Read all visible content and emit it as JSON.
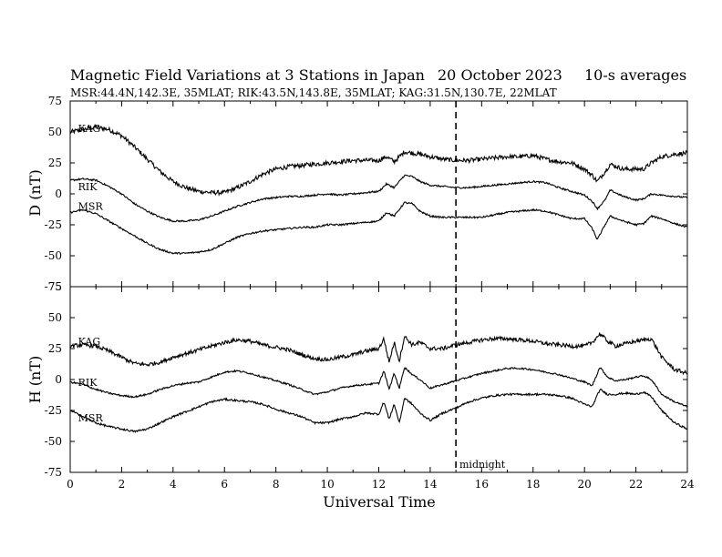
{
  "figure": {
    "title": "Magnetic Field Variations at 3 Stations in Japan",
    "date": "20 October 2023",
    "averaging": "10-s averages",
    "subtitle": "MSR:44.4N,142.3E, 35MLAT;  RIK:43.5N,143.8E, 35MLAT;  KAG:31.5N,130.7E, 22MLAT",
    "xlabel": "Universal Time",
    "midnight_label": "midnight"
  },
  "chart_data": [
    {
      "type": "line",
      "panel": "D",
      "ylabel": "D (nT)",
      "xlim": [
        0,
        24
      ],
      "ylim": [
        -75,
        75
      ],
      "yticks": [
        75,
        50,
        25,
        0,
        -25,
        -50,
        -75
      ],
      "xticks": [
        0,
        2,
        4,
        6,
        8,
        10,
        12,
        14,
        16,
        18,
        20,
        22,
        24
      ],
      "vline": 15,
      "noise_color": "#000000",
      "series": [
        {
          "name": "KAG",
          "label_at": [
            0.2,
            50
          ],
          "noise": 1.8,
          "x": [
            0,
            0.5,
            1,
            1.5,
            2,
            2.5,
            3,
            3.5,
            4,
            4.5,
            5,
            5.5,
            6,
            6.5,
            7,
            7.5,
            8,
            8.5,
            9,
            9.5,
            10,
            10.5,
            11,
            11.5,
            12,
            12.3,
            12.6,
            13,
            13.3,
            13.6,
            14,
            14.5,
            15,
            15.5,
            16,
            16.5,
            17,
            17.5,
            18,
            18.5,
            19,
            19.5,
            20,
            20.3,
            20.5,
            20.8,
            21,
            21.5,
            22,
            22.3,
            22.6,
            23,
            23.5,
            24
          ],
          "y": [
            50,
            52,
            54,
            52,
            47,
            38,
            28,
            18,
            10,
            5,
            2,
            1,
            1,
            5,
            10,
            16,
            20,
            22,
            23,
            24,
            25,
            26,
            27,
            27,
            27,
            30,
            26,
            34,
            33,
            32,
            30,
            28,
            27,
            27,
            28,
            29,
            30,
            30,
            31,
            28,
            26,
            25,
            20,
            15,
            10,
            18,
            24,
            20,
            20,
            20,
            25,
            30,
            32,
            33
          ]
        },
        {
          "name": "RIK",
          "label_at": [
            0.2,
            3
          ],
          "noise": 0.7,
          "x": [
            0,
            0.5,
            1,
            1.5,
            2,
            2.5,
            3,
            3.5,
            4,
            4.5,
            5,
            5.5,
            6,
            6.5,
            7,
            7.5,
            8,
            8.5,
            9,
            9.5,
            10,
            10.5,
            11,
            11.5,
            12,
            12.3,
            12.6,
            13,
            13.3,
            13.6,
            14,
            14.5,
            15,
            15.5,
            16,
            16.5,
            17,
            17.5,
            18,
            18.5,
            19,
            19.5,
            20,
            20.3,
            20.5,
            20.8,
            21,
            21.5,
            22,
            22.3,
            22.6,
            23,
            23.5,
            24
          ],
          "y": [
            11,
            12,
            11,
            6,
            0,
            -8,
            -14,
            -19,
            -22,
            -22,
            -21,
            -18,
            -14,
            -10,
            -7,
            -4,
            -3,
            -2,
            -2,
            -1,
            0,
            -1,
            0,
            1,
            2,
            8,
            5,
            15,
            14,
            10,
            7,
            6,
            5,
            5,
            6,
            7,
            8,
            9,
            10,
            9,
            5,
            2,
            -1,
            -6,
            -12,
            -5,
            3,
            -2,
            -5,
            -4,
            0,
            -1,
            -2,
            -3
          ]
        },
        {
          "name": "MSR",
          "label_at": [
            0.2,
            -13
          ],
          "noise": 0.7,
          "x": [
            0,
            0.5,
            1,
            1.5,
            2,
            2.5,
            3,
            3.5,
            4,
            4.5,
            5,
            5.5,
            6,
            6.5,
            7,
            7.5,
            8,
            8.5,
            9,
            9.5,
            10,
            10.5,
            11,
            11.5,
            12,
            12.3,
            12.6,
            13,
            13.3,
            13.6,
            14,
            14.5,
            15,
            15.5,
            16,
            16.5,
            17,
            17.5,
            18,
            18.5,
            19,
            19.5,
            20,
            20.3,
            20.5,
            20.8,
            21,
            21.5,
            22,
            22.3,
            22.6,
            23,
            23.5,
            24
          ],
          "y": [
            -15,
            -13,
            -16,
            -22,
            -28,
            -34,
            -40,
            -45,
            -48,
            -48,
            -47,
            -45,
            -40,
            -35,
            -32,
            -30,
            -29,
            -28,
            -27,
            -27,
            -25,
            -25,
            -24,
            -23,
            -22,
            -15,
            -18,
            -7,
            -8,
            -14,
            -18,
            -19,
            -19,
            -19,
            -19,
            -17,
            -15,
            -14,
            -13,
            -14,
            -17,
            -20,
            -20,
            -28,
            -37,
            -25,
            -18,
            -22,
            -25,
            -24,
            -18,
            -20,
            -24,
            -27
          ]
        }
      ]
    },
    {
      "type": "line",
      "panel": "H",
      "ylabel": "H (nT)",
      "xlim": [
        0,
        24
      ],
      "ylim": [
        -75,
        75
      ],
      "yticks": [
        75,
        50,
        25,
        0,
        -25,
        -50,
        -75
      ],
      "xticks": [
        0,
        2,
        4,
        6,
        8,
        10,
        12,
        14,
        16,
        18,
        20,
        22,
        24
      ],
      "vline": 15,
      "series": [
        {
          "name": "KAG",
          "label_at": [
            0.2,
            28
          ],
          "noise": 1.6,
          "x": [
            0,
            0.5,
            1,
            1.5,
            2,
            2.5,
            3,
            3.5,
            4,
            4.5,
            5,
            5.5,
            6,
            6.5,
            7,
            7.5,
            8,
            8.5,
            9,
            9.5,
            10,
            10.5,
            11,
            11.5,
            12,
            12.2,
            12.4,
            12.6,
            12.8,
            13,
            13.3,
            13.6,
            14,
            14.5,
            15,
            15.5,
            16,
            16.5,
            17,
            17.5,
            18,
            18.5,
            19,
            19.5,
            20,
            20.3,
            20.6,
            20.9,
            21.2,
            21.6,
            22,
            22.3,
            22.6,
            23,
            23.5,
            24
          ],
          "y": [
            27,
            28,
            27,
            23,
            18,
            13,
            12,
            14,
            18,
            21,
            24,
            27,
            30,
            32,
            31,
            28,
            26,
            24,
            20,
            17,
            16,
            18,
            20,
            23,
            25,
            33,
            14,
            30,
            15,
            35,
            28,
            30,
            25,
            25,
            28,
            30,
            32,
            33,
            33,
            32,
            31,
            29,
            28,
            27,
            27,
            30,
            37,
            31,
            27,
            29,
            31,
            32,
            33,
            18,
            8,
            5
          ]
        },
        {
          "name": "RIK",
          "label_at": [
            0.2,
            -5
          ],
          "noise": 0.7,
          "x": [
            0,
            0.5,
            1,
            1.5,
            2,
            2.5,
            3,
            3.5,
            4,
            4.5,
            5,
            5.5,
            6,
            6.5,
            7,
            7.5,
            8,
            8.5,
            9,
            9.5,
            10,
            10.5,
            11,
            11.5,
            12,
            12.2,
            12.4,
            12.6,
            12.8,
            13,
            13.3,
            13.6,
            14,
            14.5,
            15,
            15.5,
            16,
            16.5,
            17,
            17.5,
            18,
            18.5,
            19,
            19.5,
            20,
            20.3,
            20.6,
            20.9,
            21.2,
            21.6,
            22,
            22.3,
            22.6,
            23,
            23.5,
            24
          ],
          "y": [
            -2,
            -4,
            -8,
            -11,
            -13,
            -14,
            -12,
            -8,
            -5,
            -3,
            -2,
            2,
            6,
            7,
            5,
            2,
            -1,
            -4,
            -8,
            -12,
            -10,
            -7,
            -5,
            -4,
            -3,
            7,
            -8,
            5,
            -7,
            10,
            4,
            0,
            -7,
            -4,
            -1,
            2,
            5,
            7,
            9,
            9,
            8,
            6,
            4,
            1,
            -2,
            -5,
            10,
            2,
            -1,
            0,
            2,
            3,
            0,
            -12,
            -18,
            -22
          ]
        },
        {
          "name": "MSR",
          "label_at": [
            0.2,
            -34
          ],
          "noise": 0.8,
          "x": [
            0,
            0.5,
            1,
            1.5,
            2,
            2.5,
            3,
            3.5,
            4,
            4.5,
            5,
            5.5,
            6,
            6.5,
            7,
            7.5,
            8,
            8.5,
            9,
            9.5,
            10,
            10.5,
            11,
            11.5,
            12,
            12.2,
            12.4,
            12.6,
            12.8,
            13,
            13.3,
            13.6,
            14,
            14.5,
            15,
            15.5,
            16,
            16.5,
            17,
            17.5,
            18,
            18.5,
            19,
            19.5,
            20,
            20.3,
            20.6,
            20.9,
            21.2,
            21.6,
            22,
            22.3,
            22.6,
            23,
            23.5,
            24
          ],
          "y": [
            -25,
            -30,
            -35,
            -38,
            -40,
            -42,
            -40,
            -35,
            -30,
            -26,
            -22,
            -18,
            -16,
            -17,
            -18,
            -20,
            -24,
            -27,
            -30,
            -35,
            -35,
            -32,
            -30,
            -27,
            -28,
            -18,
            -32,
            -20,
            -35,
            -15,
            -20,
            -27,
            -33,
            -27,
            -23,
            -18,
            -15,
            -13,
            -12,
            -12,
            -12,
            -12,
            -13,
            -15,
            -20,
            -22,
            -8,
            -12,
            -12,
            -11,
            -12,
            -10,
            -14,
            -25,
            -35,
            -40
          ]
        }
      ]
    }
  ]
}
